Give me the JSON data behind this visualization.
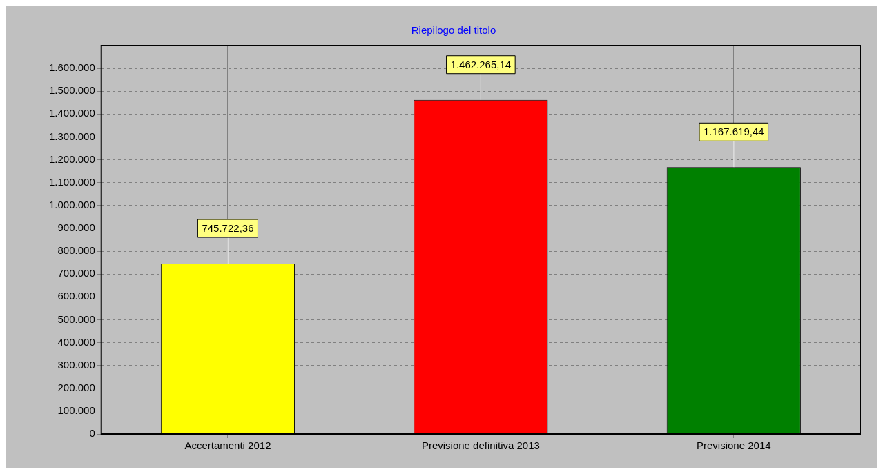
{
  "chart_data": {
    "type": "bar",
    "title": "Riepilogo del titolo",
    "categories": [
      "Accertamenti 2012",
      "Previsione definitiva 2013",
      "Previsione 2014"
    ],
    "values": [
      745722.36,
      1462265.14,
      1167619.44
    ],
    "colors": [
      "#ffff00",
      "#ff0000",
      "#008000"
    ],
    "value_labels": [
      "745.722,36",
      "1.462.265,14",
      "1.167.619,44"
    ],
    "ylim": [
      0,
      1700000
    ],
    "yticks": [
      {
        "value": 0,
        "label": "0"
      },
      {
        "value": 100000,
        "label": "100.000"
      },
      {
        "value": 200000,
        "label": "200.000"
      },
      {
        "value": 300000,
        "label": "300.000"
      },
      {
        "value": 400000,
        "label": "400.000"
      },
      {
        "value": 500000,
        "label": "500.000"
      },
      {
        "value": 600000,
        "label": "600.000"
      },
      {
        "value": 700000,
        "label": "700.000"
      },
      {
        "value": 800000,
        "label": "800.000"
      },
      {
        "value": 900000,
        "label": "900.000"
      },
      {
        "value": 1000000,
        "label": "1.000.000"
      },
      {
        "value": 1100000,
        "label": "1.100.000"
      },
      {
        "value": 1200000,
        "label": "1.200.000"
      },
      {
        "value": 1300000,
        "label": "1.300.000"
      },
      {
        "value": 1400000,
        "label": "1.400.000"
      },
      {
        "value": 1500000,
        "label": "1.500.000"
      },
      {
        "value": 1600000,
        "label": "1.600.000"
      }
    ],
    "grid": true,
    "legend": false
  }
}
